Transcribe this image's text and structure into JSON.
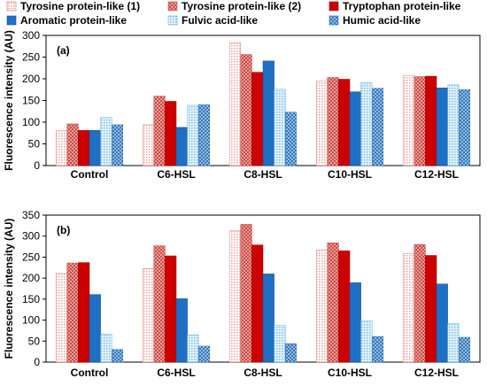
{
  "chart_data": [
    {
      "type": "bar",
      "panel_label": "(a)",
      "ylabel": "Fluorescence intensity (AU)",
      "ylim": [
        0,
        300
      ],
      "yticks": [
        0,
        50,
        100,
        150,
        200,
        250,
        300
      ],
      "grid": false,
      "categories": [
        "Control",
        "C6-HSL",
        "C8-HSL",
        "C10-HSL",
        "C12-HSL"
      ],
      "series": [
        {
          "name": "Tyrosine protein-like (1)",
          "values": [
            80,
            94,
            283,
            195,
            208
          ]
        },
        {
          "name": "Tyrosine protein-like (2)",
          "values": [
            96,
            160,
            256,
            203,
            205
          ]
        },
        {
          "name": "Tryptophan protein-like",
          "values": [
            81,
            148,
            215,
            199,
            206
          ]
        },
        {
          "name": "Aromatic protein-like",
          "values": [
            81,
            88,
            241,
            170,
            179
          ]
        },
        {
          "name": "Fulvic acid-like",
          "values": [
            111,
            139,
            176,
            191,
            186
          ]
        },
        {
          "name": "Humic acid-like",
          "values": [
            94,
            140,
            123,
            178,
            175
          ]
        }
      ]
    },
    {
      "type": "bar",
      "panel_label": "(b)",
      "ylabel": "Fluorescence intensity (AU)",
      "ylim": [
        0,
        350
      ],
      "yticks": [
        0,
        50,
        100,
        150,
        200,
        250,
        300,
        350
      ],
      "grid": false,
      "categories": [
        "Control",
        "C6-HSL",
        "C8-HSL",
        "C10-HSL",
        "C12-HSL"
      ],
      "series": [
        {
          "name": "Tyrosine protein-like (1)",
          "values": [
            211,
            223,
            313,
            267,
            258
          ]
        },
        {
          "name": "Tyrosine protein-like (2)",
          "values": [
            236,
            277,
            328,
            284,
            280
          ]
        },
        {
          "name": "Tryptophan protein-like",
          "values": [
            237,
            253,
            279,
            265,
            254
          ]
        },
        {
          "name": "Aromatic protein-like",
          "values": [
            161,
            151,
            210,
            189,
            186
          ]
        },
        {
          "name": "Fulvic acid-like",
          "values": [
            67,
            65,
            88,
            99,
            92
          ]
        },
        {
          "name": "Humic acid-like",
          "values": [
            30,
            38,
            44,
            61,
            59
          ]
        }
      ]
    }
  ],
  "legend": {
    "placement": "top",
    "items": [
      {
        "name": "Tyrosine protein-like (1)",
        "color": "#f4a9a9",
        "pattern": "fine-dots"
      },
      {
        "name": "Tyrosine protein-like (2)",
        "color": "#d4504a",
        "pattern": "crosshatch"
      },
      {
        "name": "Tryptophan protein-like",
        "color": "#cc0000",
        "pattern": "solid"
      },
      {
        "name": "Aromatic protein-like",
        "color": "#1f6fc4",
        "pattern": "solid"
      },
      {
        "name": "Fulvic acid-like",
        "color": "#8fc6e8",
        "pattern": "fine-dots"
      },
      {
        "name": "Humic acid-like",
        "color": "#3a7fc0",
        "pattern": "crosshatch"
      }
    ]
  }
}
